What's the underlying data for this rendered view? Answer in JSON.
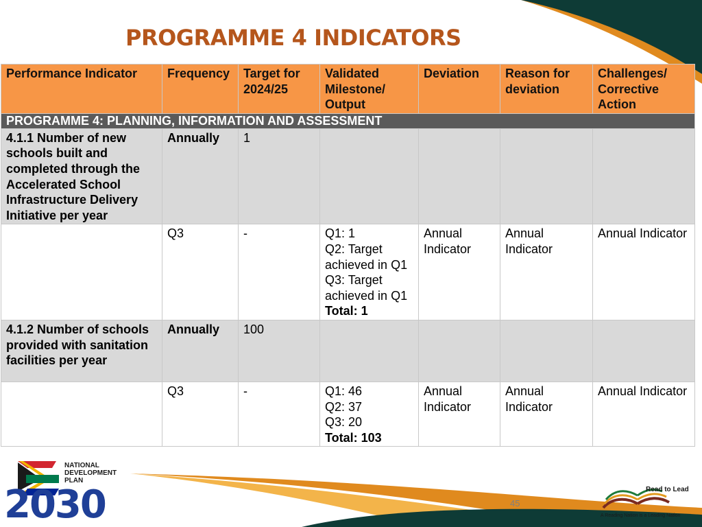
{
  "slide": {
    "title": "PROGRAMME 4 INDICATORS",
    "page_number": "45"
  },
  "table": {
    "headers": [
      "Performance Indicator",
      "Frequency",
      "Target for 2024/25",
      "Validated Milestone/ Output",
      "Deviation",
      "Reason for deviation",
      "Challenges/ Corrective Action"
    ],
    "section_title": "PROGRAMME 4: PLANNING, INFORMATION AND ASSESSMENT",
    "rows": [
      {
        "indicator": "4.1.1 Number of new schools built and completed through the Accelerated School Infrastructure Delivery Initiative per year",
        "frequency": "Annually",
        "target": "1"
      },
      {
        "frequency": "Q3",
        "target": "-",
        "milestone_lines": [
          "Q1: 1",
          "Q2: Target achieved in Q1",
          "Q3: Target achieved in Q1"
        ],
        "milestone_total": "Total: 1",
        "deviation": "Annual Indicator",
        "reason": "Annual Indicator",
        "challenges": "Annual Indicator"
      },
      {
        "indicator": "4.1.2 Number of schools provided with sanitation facilities per year",
        "frequency": "Annually",
        "target": "100"
      },
      {
        "frequency": "Q3",
        "target": "-",
        "milestone_lines": [
          "Q1: 46",
          "Q2: 37",
          "Q3: 20"
        ],
        "milestone_total": "Total: 103",
        "deviation": "Annual Indicator",
        "reason": "Annual Indicator",
        "challenges": "Annual Indicator"
      }
    ]
  },
  "logos": {
    "left": {
      "line1": "NATIONAL",
      "line2": "DEVELOPMENT",
      "line3": "PLAN",
      "year": "2030"
    },
    "right": {
      "title": "Read to Lead",
      "tagline": "A Reading Nation is a Leading Nation"
    }
  },
  "colors": {
    "title": "#b5561c",
    "header_fill": "#f79646",
    "section_fill": "#5a5a5a",
    "gray_row": "#d9d9d9",
    "dark_green": "#0e3b36",
    "orange": "#e08a1e"
  }
}
